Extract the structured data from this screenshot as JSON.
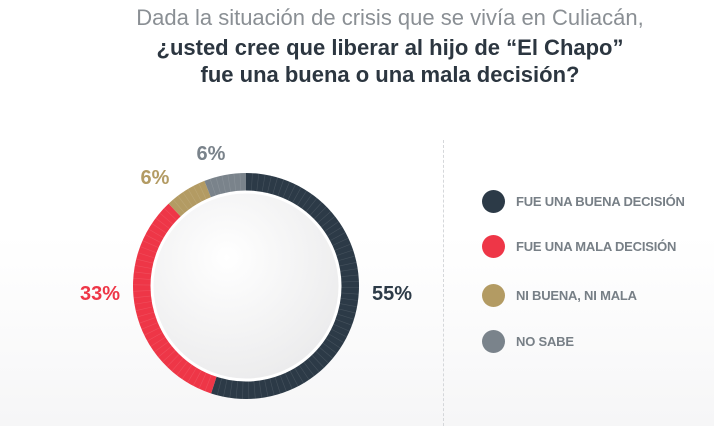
{
  "title": {
    "line1": "Dada la situación de crisis que se vivía en Culiacán,",
    "line2": "¿usted cree que liberar al hijo de “El Chapo”",
    "line3": "fue una buena o una mala decisión?"
  },
  "chart_data": {
    "type": "pie",
    "variant": "donut",
    "title": "Dada la situación de crisis que se vivía en Culiacán, ¿usted cree que liberar al hijo de “El Chapo” fue una buena o una mala decisión?",
    "categories": [
      "FUE UNA BUENA DECISIÓN",
      "FUE UNA MALA DECISIÓN",
      "NI BUENA, NI MALA",
      "NO SABE"
    ],
    "values": [
      55,
      33,
      6,
      6
    ],
    "labels": [
      "55%",
      "33%",
      "6%",
      "6%"
    ],
    "colors": [
      "#2c3a47",
      "#ee3647",
      "#b39b63",
      "#7a838b"
    ],
    "legend_position": "right"
  }
}
